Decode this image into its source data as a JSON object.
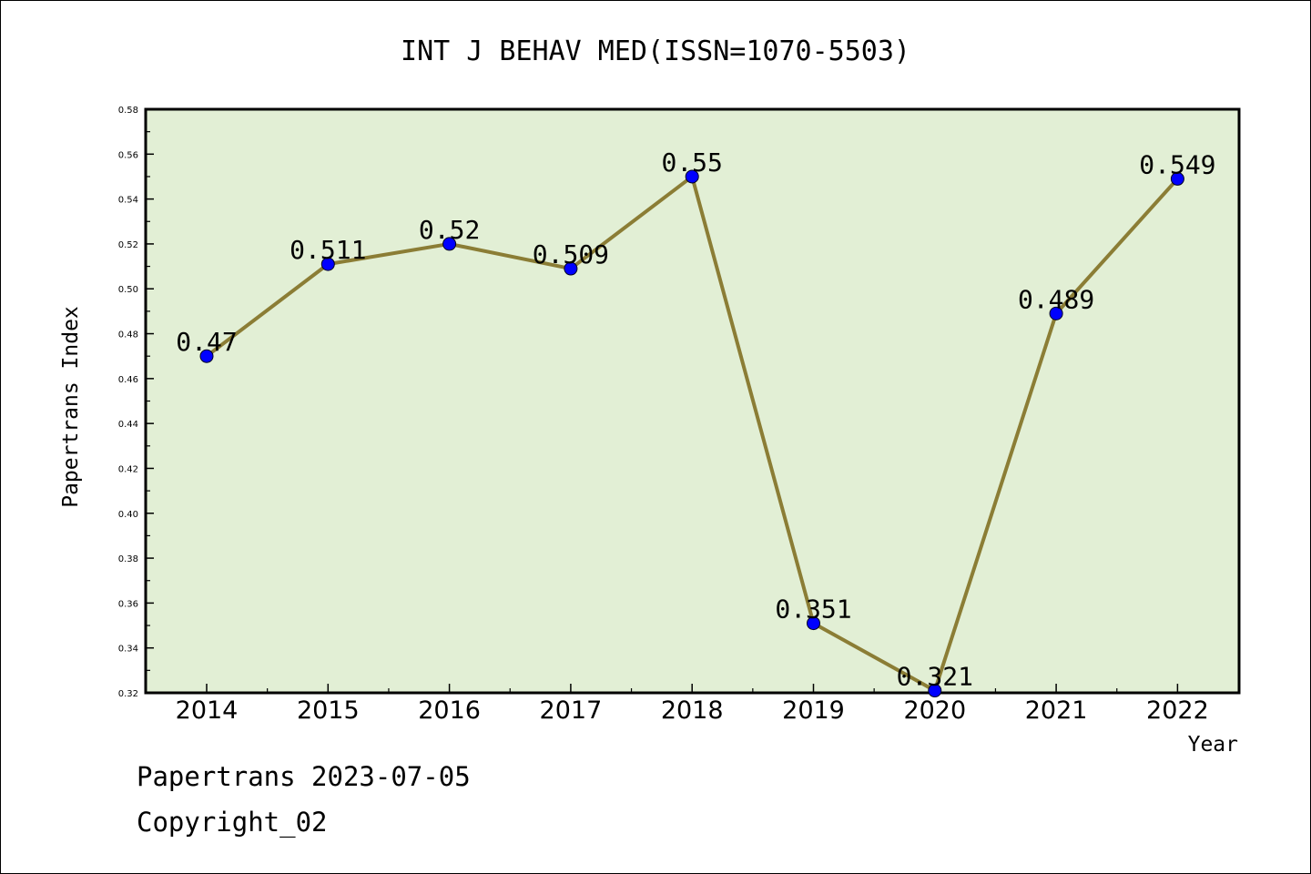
{
  "chart_data": {
    "type": "line",
    "title": "INT J BEHAV MED(ISSN=1070-5503)",
    "xlabel": "Year",
    "ylabel": "Papertrans Index",
    "categories": [
      "2014",
      "2015",
      "2016",
      "2017",
      "2018",
      "2019",
      "2020",
      "2021",
      "2022"
    ],
    "series": [
      {
        "values": [
          0.47,
          0.511,
          0.52,
          0.509,
          0.55,
          0.351,
          0.321,
          0.489,
          0.549
        ],
        "labels": [
          "0.47",
          "0.511",
          "0.52",
          "0.509",
          "0.55",
          "0.351",
          "0.321",
          "0.489",
          "0.549"
        ]
      }
    ],
    "ylim": [
      0.32,
      0.58
    ],
    "yticks": [
      "0.32",
      "0.34",
      "0.36",
      "0.38",
      "0.40",
      "0.42",
      "0.44",
      "0.46",
      "0.48",
      "0.50",
      "0.52",
      "0.54",
      "0.56",
      "0.58"
    ],
    "grid": false,
    "legend": "none",
    "colors": {
      "plot_background": "#e2efd5",
      "line": "#8b7d35",
      "marker": "#0000ff"
    }
  },
  "footer": {
    "line1": "Papertrans 2023-07-05",
    "line2": "Copyright_02"
  }
}
